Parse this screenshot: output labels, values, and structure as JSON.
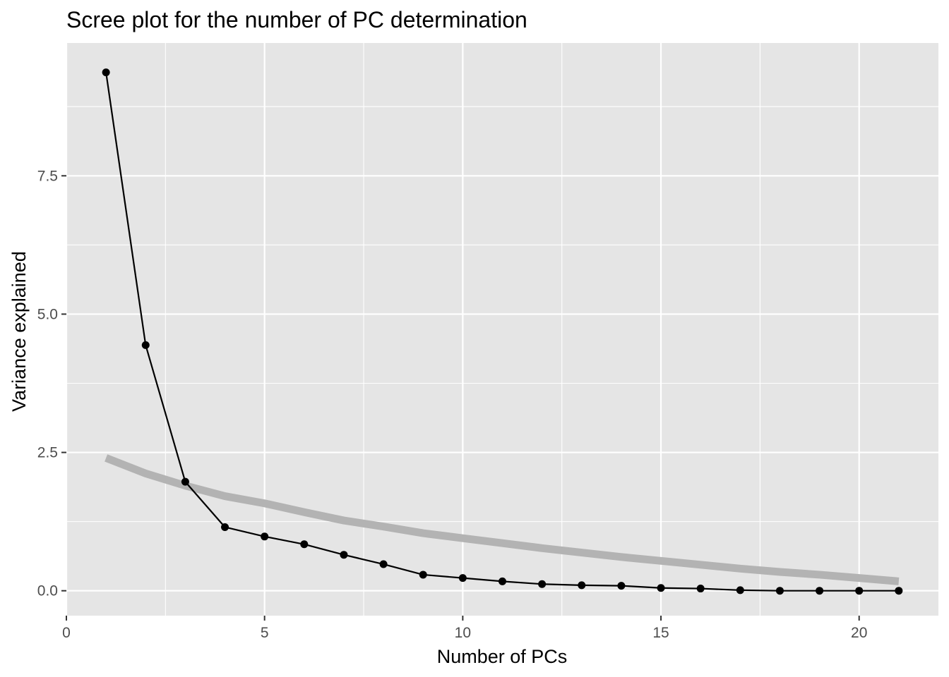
{
  "chart_data": {
    "type": "line",
    "title": "Scree plot for the number of PC determination",
    "xlabel": "Number of PCs",
    "ylabel": "Variance explained",
    "xlim": [
      0,
      22
    ],
    "ylim": [
      -0.45,
      9.9
    ],
    "x_ticks": [
      0,
      5,
      10,
      15,
      20
    ],
    "x_tick_labels": [
      "0",
      "5",
      "10",
      "15",
      "20"
    ],
    "x_minor_ticks": [
      2.5,
      7.5,
      12.5,
      17.5
    ],
    "y_ticks": [
      0,
      2.5,
      5,
      7.5
    ],
    "y_tick_labels": [
      "0.0",
      "2.5",
      "5.0",
      "7.5"
    ],
    "y_minor_ticks": [
      1.25,
      3.75,
      6.25,
      8.75
    ],
    "grid": true,
    "legend": "none",
    "colors": {
      "panel": "#e5e5e5",
      "grid": "#ffffff",
      "observed": "#000000",
      "reference": "#b3b3b3",
      "tick_label": "#4d4d4d",
      "tick_mark": "#333333"
    },
    "x": [
      1,
      2,
      3,
      4,
      5,
      6,
      7,
      8,
      9,
      10,
      11,
      12,
      13,
      14,
      15,
      16,
      17,
      18,
      19,
      20,
      21
    ],
    "series": [
      {
        "role": "observed",
        "values": [
          9.37,
          4.44,
          1.97,
          1.15,
          0.98,
          0.84,
          0.65,
          0.48,
          0.29,
          0.23,
          0.17,
          0.12,
          0.1,
          0.09,
          0.05,
          0.04,
          0.01,
          0.0,
          0.0,
          0.0,
          0.0
        ]
      },
      {
        "role": "reference",
        "values": [
          2.4,
          2.12,
          1.9,
          1.71,
          1.58,
          1.42,
          1.27,
          1.16,
          1.04,
          0.95,
          0.86,
          0.77,
          0.69,
          0.61,
          0.54,
          0.47,
          0.4,
          0.34,
          0.29,
          0.23,
          0.17
        ]
      }
    ]
  }
}
